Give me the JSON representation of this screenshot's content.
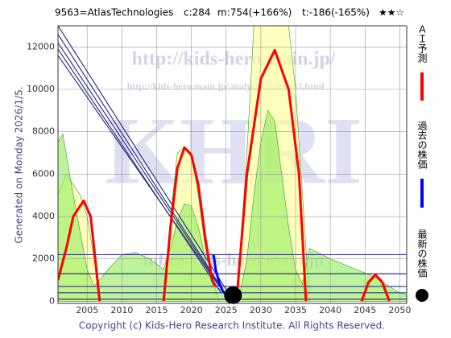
{
  "chart_data": {
    "type": "line",
    "title": "9563=AtlasTechnologies",
    "stats": [
      "c:284",
      "m:754(+166%)",
      "t:-186(-165%)"
    ],
    "rating": "★★☆",
    "generated": "Generated on Monday 2026/1/5.",
    "copyright": "Copyright (c) Kids-Hero Research Institute. All Rights Reserved.",
    "watermarks": [
      "http://kids-hero.main.jp/",
      "http://kids-hero.main.jp/analysis/code9563.html",
      "KHRI",
      "info@kids-hero.main.jp"
    ],
    "xlim": [
      2000.8,
      2051
    ],
    "ylim": [
      -100,
      13000
    ],
    "xticks": [
      2005,
      2010,
      2015,
      2020,
      2025,
      2030,
      2035,
      2040,
      2045,
      2050
    ],
    "yticks": [
      0,
      2000,
      4000,
      6000,
      8000,
      10000,
      12000
    ],
    "grid": true,
    "areas": [
      {
        "color": "#ffff99",
        "x": [
          2000.8,
          2002,
          2004,
          2005,
          2006,
          2007,
          null,
          2016,
          2017,
          2018,
          2019,
          2020,
          2021,
          2022,
          2023,
          2024,
          null,
          2026.5,
          2028,
          2029,
          2030,
          2032,
          2034,
          2035,
          2036,
          2037,
          null,
          2044.5,
          2046.5,
          2048.5
        ],
        "values": [
          5000,
          6000,
          5000,
          4000,
          2000,
          0,
          null,
          0,
          4000,
          7000,
          7300,
          7000,
          5000,
          2500,
          1000,
          0,
          null,
          0,
          7000,
          13000,
          13000,
          13000,
          13000,
          10000,
          5000,
          0,
          null,
          0,
          1300,
          0
        ]
      },
      {
        "color": "#99ee66",
        "x": [
          2000.8,
          2001.5,
          2003,
          2005,
          2006,
          2008,
          2010,
          2012,
          2014,
          2016,
          2017,
          2018,
          2019,
          2020,
          2021,
          2022,
          2023,
          2024,
          2025,
          2026,
          2027,
          2028,
          2029,
          2030,
          2031,
          2032,
          2033,
          2034,
          2035,
          2036,
          2037,
          2040,
          2043,
          2046,
          2050,
          2051
        ],
        "values": [
          7500,
          7900,
          5000,
          1500,
          700,
          1500,
          2200,
          2300,
          2000,
          1500,
          2500,
          3800,
          4600,
          4500,
          3500,
          2000,
          800,
          600,
          400,
          300,
          400,
          2000,
          5000,
          7500,
          9000,
          8500,
          6000,
          3500,
          1500,
          800,
          2500,
          2000,
          1600,
          1200,
          400,
          300
        ]
      }
    ],
    "levels": [
      2200,
      1300,
      700,
      400,
      100
    ],
    "level_color": "#333388",
    "reference_lines": [
      {
        "x": [
          2000.8,
          2025.5
        ],
        "values": [
          13000,
          300
        ]
      },
      {
        "x": [
          2000.8,
          2025
        ],
        "values": [
          12600,
          300
        ]
      },
      {
        "x": [
          2000.8,
          2024.5
        ],
        "values": [
          12200,
          500
        ]
      },
      {
        "x": [
          2000.8,
          2024.3
        ],
        "values": [
          11900,
          400
        ]
      },
      {
        "x": [
          2000.8,
          2024
        ],
        "values": [
          11600,
          700
        ]
      }
    ],
    "series": [
      {
        "name": "ＡＩ予測",
        "color": "#ff0000",
        "x": [
          2000.8,
          2002,
          2003,
          2004.5,
          2005.5,
          2006,
          2006.8,
          null,
          2016,
          2017,
          2018,
          2019,
          2020,
          2021,
          2022,
          2023,
          2023.5,
          null,
          2026.5,
          2028,
          2030,
          2032,
          2034,
          2035.5,
          2036.5,
          null,
          2044.5,
          2045.5,
          2046.5,
          2047.5,
          2048.5
        ],
        "values": [
          1000,
          2500,
          4000,
          4750,
          4000,
          2500,
          0,
          null,
          0,
          3500,
          6300,
          7250,
          6900,
          5500,
          3000,
          1000,
          700,
          null,
          0,
          6000,
          10500,
          11850,
          10000,
          6000,
          0,
          null,
          0,
          900,
          1250,
          900,
          0
        ]
      },
      {
        "name": "過去の株価",
        "color": "#0000ff",
        "x": [
          2023.2,
          2023.5,
          2024,
          2024.5,
          2025,
          2026
        ],
        "values": [
          2200,
          1500,
          900,
          500,
          300,
          284
        ]
      },
      {
        "name": "最新の株価",
        "color": "#000000",
        "marker": "dot",
        "x": [
          2026
        ],
        "values": [
          284
        ]
      }
    ]
  }
}
